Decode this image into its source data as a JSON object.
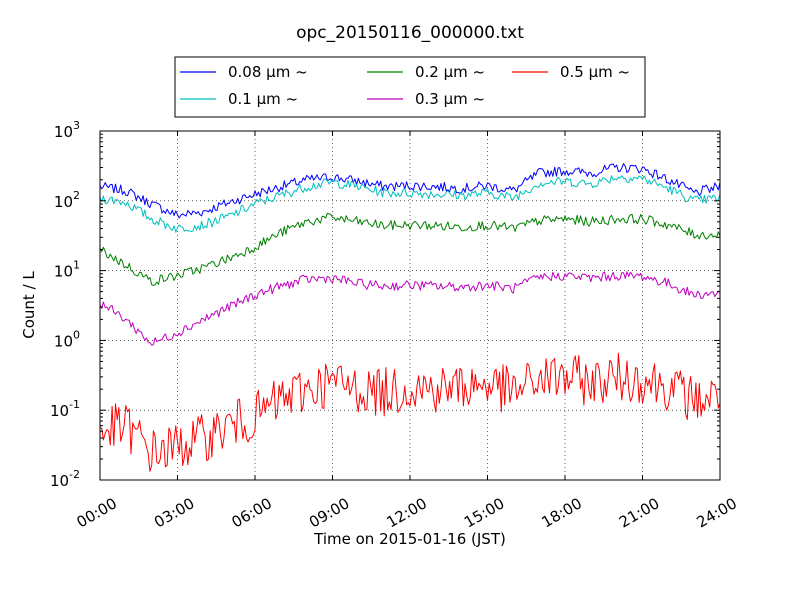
{
  "chart_data": {
    "type": "line",
    "title": "opc_20150116_000000.txt",
    "xlabel": "Time on 2015-01-16 (JST)",
    "ylabel": "Count / L",
    "yscale": "log",
    "ylim": [
      0.01,
      1000
    ],
    "xlim": [
      "00:00",
      "24:00"
    ],
    "grid": true,
    "legend_placement": "top-center",
    "x_ticks": [
      "00:00",
      "03:00",
      "06:00",
      "09:00",
      "12:00",
      "15:00",
      "18:00",
      "21:00",
      "24:00"
    ],
    "y_ticks": [
      {
        "base": "10",
        "exp": "-2",
        "value": 0.01
      },
      {
        "base": "10",
        "exp": "-1",
        "value": 0.1
      },
      {
        "base": "10",
        "exp": "0",
        "value": 1
      },
      {
        "base": "10",
        "exp": "1",
        "value": 10
      },
      {
        "base": "10",
        "exp": "2",
        "value": 100
      },
      {
        "base": "10",
        "exp": "3",
        "value": 1000
      }
    ],
    "x": [
      "00:00",
      "01:00",
      "02:00",
      "03:00",
      "04:00",
      "05:00",
      "06:00",
      "07:00",
      "08:00",
      "09:00",
      "10:00",
      "11:00",
      "12:00",
      "13:00",
      "14:00",
      "15:00",
      "16:00",
      "17:00",
      "18:00",
      "19:00",
      "20:00",
      "21:00",
      "22:00",
      "23:00",
      "24:00"
    ],
    "series": [
      {
        "name": "0.08 μm ~",
        "color": "#0000ff",
        "legend_col": 0,
        "legend_row": 0,
        "values": [
          160,
          140,
          90,
          62,
          70,
          95,
          125,
          160,
          200,
          220,
          190,
          160,
          165,
          160,
          150,
          165,
          140,
          250,
          270,
          250,
          300,
          290,
          200,
          130,
          160
        ]
      },
      {
        "name": "0.1 μm ~",
        "color": "#00bfbf",
        "legend_col": 0,
        "legend_row": 1,
        "values": [
          110,
          95,
          55,
          40,
          45,
          60,
          90,
          120,
          160,
          185,
          160,
          130,
          130,
          125,
          120,
          130,
          110,
          180,
          190,
          175,
          220,
          210,
          150,
          100,
          110
        ]
      },
      {
        "name": "0.2 μm ~",
        "color": "#008000",
        "legend_col": 1,
        "legend_row": 0,
        "values": [
          20,
          12,
          7,
          8.5,
          11,
          15,
          22,
          35,
          50,
          58,
          50,
          44,
          45,
          44,
          42,
          45,
          40,
          52,
          55,
          50,
          55,
          55,
          45,
          33,
          32
        ]
      },
      {
        "name": "0.3 μm ~",
        "color": "#bf00bf",
        "legend_col": 1,
        "legend_row": 1,
        "values": [
          3.5,
          2.0,
          0.9,
          1.3,
          2.0,
          3.0,
          4.5,
          6.0,
          7.5,
          7.8,
          6.5,
          6.0,
          6.2,
          6.0,
          5.8,
          6.2,
          5.5,
          8.0,
          8.5,
          7.8,
          8.5,
          8.3,
          6.5,
          4.5,
          4.8
        ]
      },
      {
        "name": "0.5 μm ~",
        "color": "#ff0000",
        "legend_col": 2,
        "legend_row": 0,
        "values": [
          0.05,
          0.06,
          0.025,
          0.03,
          0.04,
          0.06,
          0.08,
          0.14,
          0.2,
          0.25,
          0.2,
          0.18,
          0.22,
          0.2,
          0.22,
          0.24,
          0.18,
          0.28,
          0.3,
          0.25,
          0.3,
          0.28,
          0.22,
          0.14,
          0.16
        ]
      }
    ]
  }
}
